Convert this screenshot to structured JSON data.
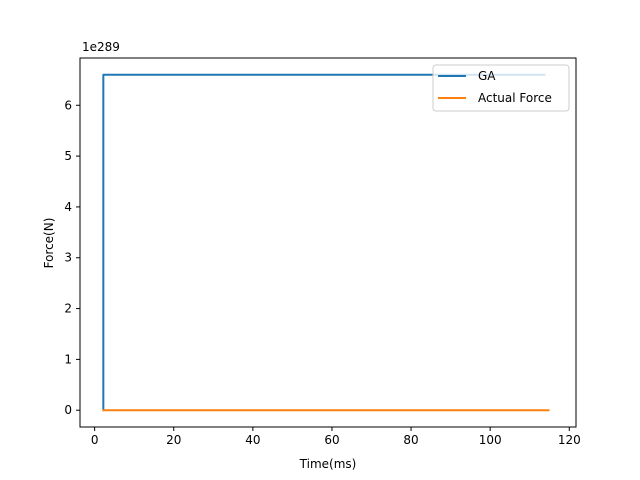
{
  "chart_data": {
    "type": "line",
    "xlabel": "Time(ms)",
    "ylabel": "Force(N)",
    "scale_label": "1e289",
    "xlim": [
      -3.7,
      121.7
    ],
    "ylim": [
      -0.33,
      6.93
    ],
    "x_ticks": [
      0,
      20,
      40,
      60,
      80,
      100,
      120
    ],
    "y_ticks": [
      0,
      1,
      2,
      3,
      4,
      5,
      6
    ],
    "legend_position": "top-right",
    "grid": false,
    "series": [
      {
        "name": "GA",
        "color": "#1f77b4",
        "x": [
          2,
          2.2,
          2.2,
          114
        ],
        "y": [
          0,
          0,
          6.6,
          6.6
        ]
      },
      {
        "name": "Actual Force",
        "color": "#ff7f0e",
        "x": [
          2,
          115
        ],
        "y": [
          0,
          0
        ]
      }
    ]
  }
}
